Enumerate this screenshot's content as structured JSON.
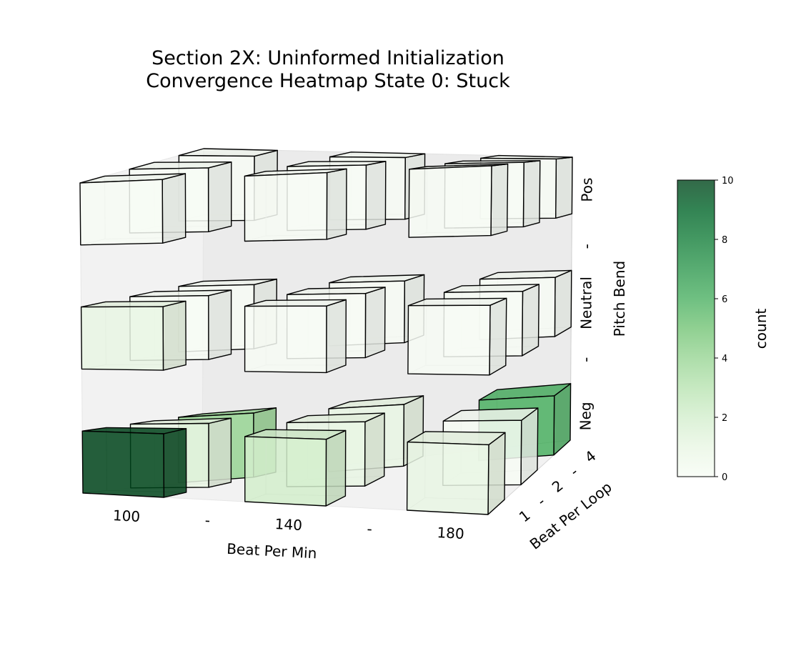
{
  "title_line1": "Section 2X: Uninformed Initialization",
  "title_line2": "Convergence Heatmap State 0: Stuck",
  "colorbar": {
    "label": "count",
    "min": 0,
    "max": 10,
    "ticks": [
      "0",
      "2",
      "4",
      "6",
      "8",
      "10"
    ],
    "colormap": "Greens"
  },
  "chart_data": {
    "type": "heatmap",
    "subtype": "3d-voxel",
    "title": "Section 2X: Uninformed Initialization\nConvergence Heatmap State 0: Stuck",
    "xlabel": "Beat Per Min",
    "ylabel": "Beat Per Loop",
    "zlabel": "Pitch Bend",
    "x_ticklabels": [
      "100",
      "-",
      "140",
      "-",
      "180"
    ],
    "y_ticklabels": [
      "1",
      "-",
      "2",
      "-",
      "4"
    ],
    "z_ticklabels": [
      "Neg",
      "-",
      "Neutral",
      "-",
      "Pos"
    ],
    "x_categories": [
      "100",
      "140",
      "180"
    ],
    "y_categories": [
      "1",
      "2",
      "4"
    ],
    "z_categories": [
      "Neg",
      "Neutral",
      "Pos"
    ],
    "value_range": [
      0,
      10
    ],
    "colorbar_label": "count",
    "values_note": "values[z][y][x]",
    "values": [
      [
        [
          10,
          2,
          1
        ],
        [
          1,
          1,
          0
        ],
        [
          4,
          1,
          6
        ]
      ],
      [
        [
          1,
          0,
          0
        ],
        [
          0,
          0,
          0
        ],
        [
          0,
          0,
          0
        ]
      ],
      [
        [
          0,
          0,
          0
        ],
        [
          0,
          0,
          0
        ],
        [
          0,
          0,
          0
        ]
      ]
    ]
  }
}
